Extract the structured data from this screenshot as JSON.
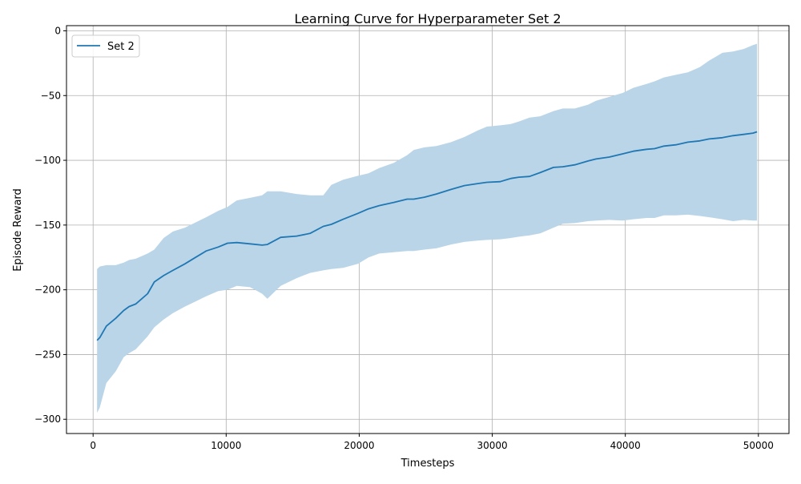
{
  "chart_data": {
    "type": "line",
    "title": "Learning Curve for Hyperparameter Set 2",
    "xlabel": "Timesteps",
    "ylabel": "Episode Reward",
    "xlim": [
      -2000,
      52300
    ],
    "ylim": [
      -311,
      4
    ],
    "xticks": [
      0,
      10000,
      20000,
      30000,
      40000,
      50000
    ],
    "xtick_labels": [
      "0",
      "10000",
      "20000",
      "30000",
      "40000",
      "50000"
    ],
    "yticks": [
      0,
      -50,
      -100,
      -150,
      -200,
      -250,
      -300
    ],
    "ytick_labels": [
      "0",
      "−50",
      "−100",
      "−150",
      "−200",
      "−250",
      "−300"
    ],
    "grid": true,
    "legend_position": "top-left",
    "series": [
      {
        "name": "Set 2",
        "color": "#1f77b4",
        "band_color": "#bad5e8",
        "x": [
          300,
          500,
          1000,
          1700,
          2300,
          2700,
          3200,
          4100,
          4600,
          5300,
          6000,
          6900,
          7700,
          8500,
          9400,
          10100,
          10800,
          11800,
          12700,
          13100,
          14100,
          15300,
          16300,
          17300,
          17900,
          18800,
          19900,
          20700,
          21500,
          22600,
          23600,
          24100,
          24900,
          25800,
          26900,
          27900,
          28900,
          29600,
          30600,
          31400,
          32000,
          32800,
          33600,
          34600,
          35300,
          36200,
          37200,
          37800,
          38800,
          39800,
          40600,
          41600,
          42200,
          42900,
          43800,
          44700,
          45600,
          46300,
          47300,
          48100,
          48900,
          49600,
          49900
        ],
        "mean": [
          -239,
          -237,
          -228,
          -222,
          -216,
          -213,
          -211,
          -203,
          -194,
          -189,
          -185,
          -180,
          -175,
          -170,
          -167,
          -164,
          -163.5,
          -164.5,
          -165.5,
          -165,
          -159.5,
          -158.5,
          -156.5,
          -151,
          -149.5,
          -145.5,
          -141,
          -137.5,
          -135,
          -132.5,
          -130,
          -130,
          -128.5,
          -126,
          -122.5,
          -119.5,
          -118,
          -117,
          -116.5,
          -114,
          -113,
          -112.5,
          -109.5,
          -105.5,
          -105,
          -103.5,
          -100.5,
          -99,
          -97.5,
          -95,
          -93,
          -91.5,
          -91,
          -89,
          -88,
          -86,
          -85,
          -83.5,
          -82.5,
          -81,
          -80,
          -79,
          -78
        ],
        "upper": [
          -184,
          -182,
          -181,
          -181,
          -179,
          -177,
          -176,
          -172,
          -169,
          -160,
          -155,
          -152,
          -148,
          -144,
          -139,
          -136,
          -131,
          -129,
          -127,
          -124,
          -124,
          -126,
          -127,
          -127,
          -119,
          -115,
          -112,
          -110,
          -106,
          -102,
          -96,
          -92,
          -90,
          -89,
          -86,
          -82,
          -77,
          -74,
          -73,
          -72,
          -70,
          -67,
          -66,
          -62,
          -60,
          -60,
          -57,
          -54,
          -51,
          -48,
          -44,
          -41,
          -39,
          -36,
          -34,
          -32,
          -28,
          -23,
          -17,
          -16,
          -14,
          -11,
          -10
        ],
        "lower": [
          -295,
          -291,
          -272,
          -263,
          -252,
          -249,
          -246,
          -236,
          -229,
          -223,
          -218,
          -213,
          -209,
          -205,
          -201,
          -200,
          -197,
          -198,
          -203,
          -207,
          -197,
          -191,
          -187,
          -185,
          -184,
          -183,
          -180,
          -175,
          -172,
          -171,
          -170,
          -170,
          -169,
          -168,
          -165,
          -163,
          -162,
          -161.5,
          -161,
          -160,
          -159,
          -158,
          -156.5,
          -152,
          -149,
          -148.5,
          -147,
          -146.5,
          -146,
          -146.5,
          -145.5,
          -144.5,
          -144.5,
          -142.5,
          -142.5,
          -142,
          -143,
          -144,
          -145.5,
          -147,
          -146,
          -146.5,
          -146.5
        ]
      }
    ]
  }
}
